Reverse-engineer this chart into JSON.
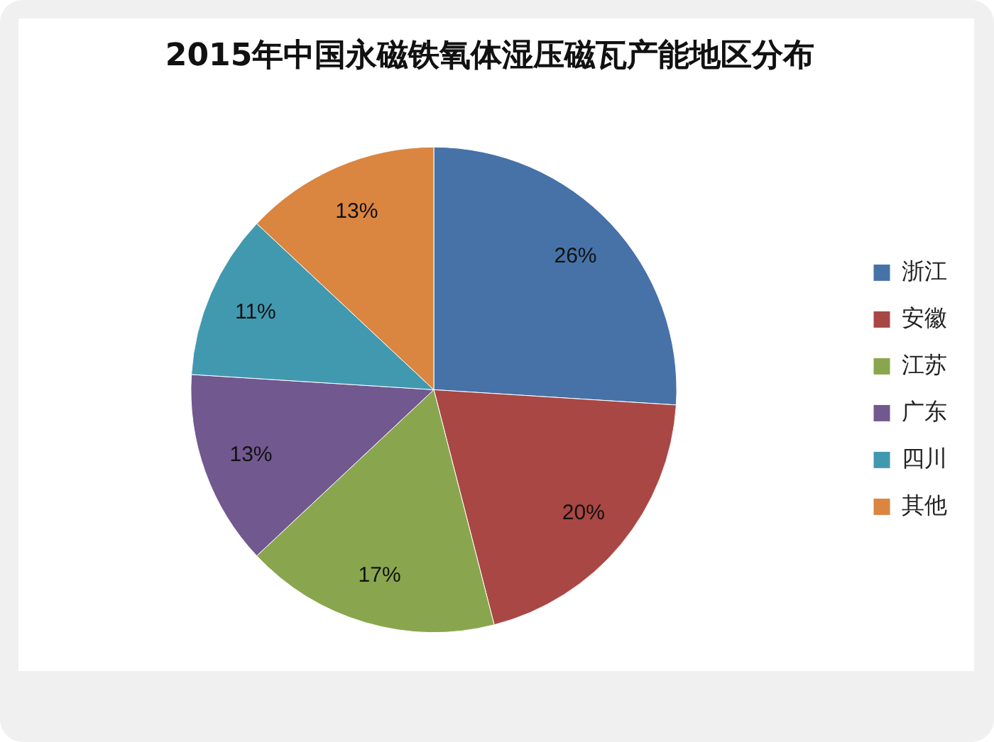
{
  "chart_data": {
    "type": "pie",
    "title": "2015年中国永磁铁氧体湿压磁瓦产能地区分布",
    "categories": [
      "浙江",
      "安徽",
      "江苏",
      "广东",
      "四川",
      "其他"
    ],
    "values": [
      26,
      20,
      17,
      13,
      11,
      13
    ],
    "colors": [
      "#4672a8",
      "#a94744",
      "#89a64e",
      "#71588f",
      "#4199b0",
      "#da8540"
    ],
    "value_labels": [
      "26%",
      "20%",
      "17%",
      "13%",
      "11%",
      "13%"
    ],
    "legend": "right"
  }
}
